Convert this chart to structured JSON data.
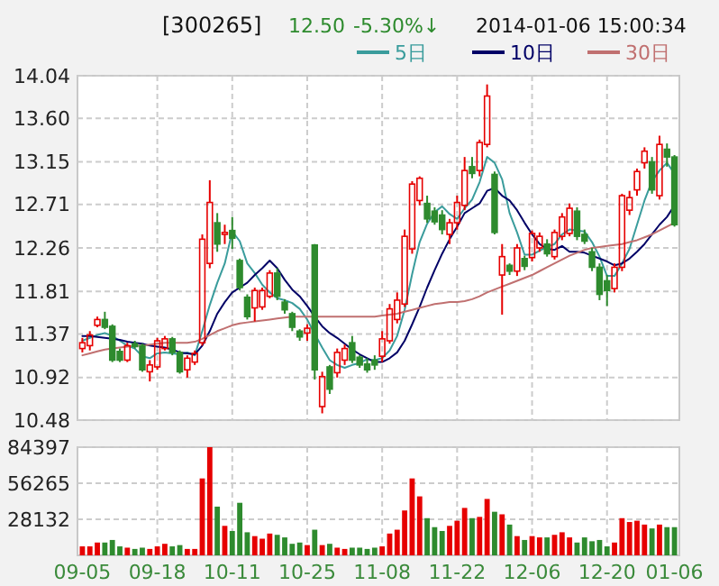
{
  "chart_data": [
    {
      "type": "candlestick",
      "title": "[300265]",
      "annotations": [
        "12.50",
        "-5.30%↓",
        "2014-01-06 15:00:34"
      ],
      "categories": [
        null,
        null,
        null,
        null,
        null,
        null,
        null,
        null,
        null,
        null,
        null,
        null,
        null,
        null,
        null,
        null,
        null,
        null,
        null,
        null,
        null,
        null,
        null,
        null,
        null,
        null,
        null,
        null,
        null,
        null,
        null,
        null,
        null,
        null,
        null,
        null,
        null,
        null,
        null,
        null,
        null,
        null,
        null,
        null,
        null,
        null,
        null,
        null,
        null,
        null,
        null,
        null,
        null,
        null,
        null,
        null,
        null,
        null,
        null,
        null,
        null,
        null,
        null,
        null,
        null,
        null,
        null,
        null,
        null,
        null,
        null,
        null,
        null,
        null,
        null,
        null,
        null,
        null,
        null,
        null
      ],
      "ohlc": [
        [
          11.22,
          11.33,
          11.18,
          11.28
        ],
        [
          11.25,
          11.4,
          11.2,
          11.36
        ],
        [
          11.46,
          11.55,
          11.44,
          11.52
        ],
        [
          11.52,
          11.6,
          11.42,
          11.44
        ],
        [
          11.45,
          11.47,
          11.08,
          11.1
        ],
        [
          11.19,
          11.22,
          11.08,
          11.1
        ],
        [
          11.1,
          11.28,
          11.08,
          11.25
        ],
        [
          11.27,
          11.3,
          11.22,
          11.24
        ],
        [
          11.25,
          11.27,
          10.98,
          11.0
        ],
        [
          10.98,
          11.1,
          10.88,
          11.05
        ],
        [
          11.03,
          11.33,
          11.0,
          11.3
        ],
        [
          11.22,
          11.35,
          11.2,
          11.32
        ],
        [
          11.32,
          11.34,
          11.15,
          11.18
        ],
        [
          11.18,
          11.2,
          10.96,
          10.98
        ],
        [
          11.0,
          11.15,
          10.92,
          11.12
        ],
        [
          11.08,
          11.2,
          11.05,
          11.17
        ],
        [
          11.28,
          12.4,
          11.25,
          12.35
        ],
        [
          12.1,
          12.96,
          12.05,
          12.73
        ],
        [
          12.52,
          12.62,
          12.22,
          12.3
        ],
        [
          12.4,
          12.5,
          12.3,
          12.42
        ],
        [
          12.44,
          12.58,
          12.25,
          12.36
        ],
        [
          12.13,
          12.15,
          11.82,
          11.85
        ],
        [
          11.75,
          11.78,
          11.52,
          11.55
        ],
        [
          11.64,
          11.85,
          11.5,
          11.82
        ],
        [
          11.65,
          11.85,
          11.62,
          11.82
        ],
        [
          11.76,
          12.03,
          11.74,
          12.0
        ],
        [
          12.0,
          12.05,
          11.72,
          11.76
        ],
        [
          11.7,
          11.73,
          11.58,
          11.62
        ],
        [
          11.58,
          11.6,
          11.4,
          11.44
        ],
        [
          11.4,
          11.42,
          11.3,
          11.34
        ],
        [
          11.38,
          11.47,
          11.3,
          11.43
        ],
        [
          12.29,
          12.3,
          10.9,
          11.0
        ],
        [
          10.62,
          10.98,
          10.55,
          10.93
        ],
        [
          11.03,
          11.05,
          10.75,
          10.8
        ],
        [
          10.97,
          11.22,
          10.92,
          11.18
        ],
        [
          11.1,
          11.26,
          11.05,
          11.22
        ],
        [
          11.28,
          11.35,
          11.07,
          11.1
        ],
        [
          11.13,
          11.15,
          11.02,
          11.05
        ],
        [
          11.06,
          11.12,
          10.97,
          11.0
        ],
        [
          11.1,
          11.15,
          11.0,
          11.05
        ],
        [
          11.14,
          11.4,
          11.08,
          11.32
        ],
        [
          11.3,
          11.68,
          11.27,
          11.63
        ],
        [
          11.52,
          11.8,
          11.48,
          11.72
        ],
        [
          11.68,
          12.45,
          11.65,
          12.38
        ],
        [
          12.25,
          12.95,
          12.2,
          12.92
        ],
        [
          12.75,
          13.0,
          12.7,
          12.98
        ],
        [
          12.72,
          12.8,
          12.52,
          12.56
        ],
        [
          12.64,
          12.68,
          12.5,
          12.53
        ],
        [
          12.6,
          12.65,
          12.4,
          12.45
        ],
        [
          12.4,
          12.56,
          12.3,
          12.52
        ],
        [
          12.52,
          12.8,
          12.45,
          12.73
        ],
        [
          12.7,
          13.2,
          12.65,
          13.06
        ],
        [
          13.1,
          13.2,
          12.98,
          13.03
        ],
        [
          13.06,
          13.38,
          13.0,
          13.35
        ],
        [
          13.33,
          13.95,
          13.3,
          13.83
        ],
        [
          13.02,
          13.05,
          12.4,
          12.42
        ],
        [
          11.98,
          12.3,
          11.57,
          12.17
        ],
        [
          12.08,
          12.1,
          11.98,
          12.02
        ],
        [
          12.02,
          12.3,
          11.97,
          12.26
        ],
        [
          12.15,
          12.18,
          12.03,
          12.07
        ],
        [
          12.16,
          12.44,
          12.12,
          12.41
        ],
        [
          12.26,
          12.42,
          12.22,
          12.38
        ],
        [
          12.3,
          12.35,
          12.17,
          12.2
        ],
        [
          12.17,
          12.45,
          12.14,
          12.42
        ],
        [
          12.38,
          12.62,
          12.34,
          12.58
        ],
        [
          12.41,
          12.72,
          12.38,
          12.67
        ],
        [
          12.64,
          12.68,
          12.34,
          12.38
        ],
        [
          12.4,
          12.45,
          12.3,
          12.33
        ],
        [
          12.22,
          12.26,
          12.02,
          12.06
        ],
        [
          12.06,
          12.1,
          11.72,
          11.78
        ],
        [
          11.92,
          11.98,
          11.66,
          11.82
        ],
        [
          11.84,
          12.1,
          11.8,
          12.06
        ],
        [
          12.06,
          12.82,
          12.02,
          12.8
        ],
        [
          12.65,
          12.85,
          12.6,
          12.78
        ],
        [
          12.86,
          13.08,
          12.8,
          13.05
        ],
        [
          13.14,
          13.3,
          13.08,
          13.26
        ],
        [
          13.15,
          13.2,
          12.82,
          12.86
        ],
        [
          12.8,
          13.42,
          12.76,
          13.33
        ],
        [
          13.28,
          13.34,
          13.1,
          13.2
        ],
        [
          13.2,
          13.22,
          12.48,
          12.5
        ]
      ],
      "colors": [
        "#e60000",
        "#e60000",
        "#e60000",
        "#2e8b2e",
        "#2e8b2e",
        "#2e8b2e",
        "#e60000",
        "#2e8b2e",
        "#2e8b2e",
        "#e60000",
        "#e60000",
        "#e60000",
        "#2e8b2e",
        "#2e8b2e",
        "#e60000",
        "#e60000",
        "#e60000",
        "#e60000",
        "#2e8b2e",
        "#e60000",
        "#2e8b2e",
        "#2e8b2e",
        "#2e8b2e",
        "#e60000",
        "#e60000",
        "#e60000",
        "#2e8b2e",
        "#2e8b2e",
        "#2e8b2e",
        "#2e8b2e",
        "#e60000",
        "#2e8b2e",
        "#e60000",
        "#2e8b2e",
        "#e60000",
        "#e60000",
        "#2e8b2e",
        "#2e8b2e",
        "#2e8b2e",
        "#2e8b2e",
        "#e60000",
        "#e60000",
        "#e60000",
        "#e60000",
        "#e60000",
        "#e60000",
        "#2e8b2e",
        "#2e8b2e",
        "#2e8b2e",
        "#e60000",
        "#e60000",
        "#e60000",
        "#2e8b2e",
        "#e60000",
        "#e60000",
        "#2e8b2e",
        "#e60000",
        "#2e8b2e",
        "#e60000",
        "#2e8b2e",
        "#e60000",
        "#e60000",
        "#2e8b2e",
        "#e60000",
        "#e60000",
        "#e60000",
        "#2e8b2e",
        "#2e8b2e",
        "#2e8b2e",
        "#2e8b2e",
        "#2e8b2e",
        "#e60000",
        "#e60000",
        "#e60000",
        "#e60000",
        "#e60000",
        "#2e8b2e",
        "#e60000",
        "#2e8b2e",
        "#2e8b2e"
      ],
      "series": [
        {
          "type": "line",
          "name": "5日",
          "color": "#3a9c9c",
          "values": [
            11.3,
            11.33,
            11.36,
            11.38,
            11.35,
            11.3,
            11.25,
            11.22,
            11.14,
            11.12,
            11.17,
            11.18,
            11.17,
            11.16,
            11.18,
            11.15,
            11.4,
            11.67,
            11.9,
            12.1,
            12.43,
            12.33,
            12.1,
            12.0,
            11.88,
            11.8,
            11.74,
            11.72,
            11.69,
            11.63,
            11.52,
            11.37,
            11.23,
            11.1,
            11.05,
            11.02,
            11.05,
            11.07,
            11.11,
            11.1,
            11.12,
            11.2,
            11.35,
            11.62,
            11.99,
            12.32,
            12.51,
            12.63,
            12.69,
            12.61,
            12.56,
            12.67,
            12.76,
            12.94,
            13.2,
            13.14,
            12.97,
            12.62,
            12.42,
            12.19,
            12.19,
            12.23,
            12.27,
            12.3,
            12.4,
            12.45,
            12.44,
            12.43,
            12.32,
            12.17,
            11.97,
            11.97,
            12.1,
            12.25,
            12.5,
            12.75,
            12.95,
            13.06,
            13.14,
            13.03
          ]
        },
        {
          "type": "line",
          "name": "10日",
          "color": "#000066",
          "values": [
            11.35,
            11.35,
            11.34,
            11.33,
            11.32,
            11.31,
            11.29,
            11.28,
            11.27,
            11.25,
            11.24,
            11.23,
            11.21,
            11.18,
            11.17,
            11.16,
            11.25,
            11.4,
            11.58,
            11.7,
            11.8,
            11.85,
            11.9,
            11.98,
            12.05,
            12.13,
            12.05,
            11.93,
            11.83,
            11.76,
            11.66,
            11.55,
            11.45,
            11.38,
            11.33,
            11.27,
            11.21,
            11.16,
            11.12,
            11.08,
            11.08,
            11.12,
            11.18,
            11.3,
            11.47,
            11.65,
            11.85,
            12.03,
            12.2,
            12.35,
            12.48,
            12.62,
            12.67,
            12.72,
            12.85,
            12.88,
            12.8,
            12.75,
            12.65,
            12.52,
            12.4,
            12.3,
            12.25,
            12.24,
            12.28,
            12.22,
            12.22,
            12.21,
            12.18,
            12.15,
            12.12,
            12.08,
            12.1,
            12.15,
            12.22,
            12.3,
            12.4,
            12.5,
            12.58,
            12.7
          ]
        },
        {
          "type": "line",
          "name": "30日",
          "color": "#c07070",
          "values": [
            11.15,
            11.17,
            11.19,
            11.21,
            11.22,
            11.23,
            11.24,
            11.25,
            11.25,
            11.26,
            11.27,
            11.28,
            11.28,
            11.28,
            11.28,
            11.29,
            11.32,
            11.36,
            11.4,
            11.43,
            11.46,
            11.48,
            11.49,
            11.5,
            11.51,
            11.52,
            11.53,
            11.54,
            11.55,
            11.55,
            11.55,
            11.55,
            11.55,
            11.55,
            11.55,
            11.55,
            11.55,
            11.55,
            11.55,
            11.55,
            11.56,
            11.57,
            11.58,
            11.6,
            11.62,
            11.64,
            11.66,
            11.68,
            11.69,
            11.7,
            11.7,
            11.71,
            11.73,
            11.76,
            11.8,
            11.83,
            11.86,
            11.89,
            11.92,
            11.95,
            11.98,
            12.02,
            12.06,
            12.1,
            12.14,
            12.18,
            12.21,
            12.24,
            12.26,
            12.27,
            12.28,
            12.29,
            12.3,
            12.32,
            12.34,
            12.37,
            12.4,
            12.44,
            12.48,
            12.52
          ]
        }
      ],
      "ylim": [
        10.48,
        14.04
      ],
      "yticks": [
        10.48,
        10.92,
        11.37,
        11.81,
        12.26,
        12.71,
        13.15,
        {
          "value": 13.6,
          "label": "13.60"
        },
        14.04
      ],
      "grid": true,
      "legend": "top right",
      "tick_labels": "y",
      "marker": "none",
      "line_style": "solid"
    },
    {
      "type": "bar",
      "categories": [
        "09-05",
        null,
        null,
        null,
        null,
        null,
        null,
        null,
        null,
        null,
        "09-18",
        null,
        null,
        null,
        null,
        null,
        null,
        null,
        null,
        null,
        "10-11",
        null,
        null,
        null,
        null,
        null,
        null,
        null,
        null,
        null,
        "10-25",
        null,
        null,
        null,
        null,
        null,
        null,
        null,
        null,
        null,
        "11-08",
        null,
        null,
        null,
        null,
        null,
        null,
        null,
        null,
        null,
        "11-22",
        null,
        null,
        null,
        null,
        null,
        null,
        null,
        null,
        null,
        "12-06",
        null,
        null,
        null,
        null,
        null,
        null,
        null,
        null,
        null,
        "12-20",
        null,
        null,
        null,
        null,
        null,
        null,
        null,
        null,
        "01-06"
      ],
      "values": [
        7000,
        7000,
        10000,
        10000,
        12000,
        7000,
        6000,
        5000,
        6000,
        5000,
        7000,
        9000,
        7000,
        8000,
        5000,
        5000,
        60000,
        84397,
        38000,
        23000,
        19000,
        41000,
        18000,
        15000,
        13000,
        17000,
        16000,
        14000,
        9000,
        10000,
        8000,
        20000,
        8000,
        9000,
        6000,
        5000,
        6000,
        6000,
        5000,
        6000,
        7000,
        17000,
        20000,
        35000,
        60000,
        46000,
        29000,
        22000,
        19000,
        23000,
        27000,
        37000,
        29000,
        30000,
        44000,
        34000,
        32000,
        24000,
        15000,
        12000,
        15000,
        14000,
        14000,
        16000,
        18000,
        14000,
        10000,
        14000,
        11000,
        12000,
        7000,
        10000,
        29000,
        26000,
        27000,
        24000,
        21000,
        24000,
        22000,
        22000
      ],
      "colors": [
        "#e60000",
        "#e60000",
        "#e60000",
        "#2e8b2e",
        "#2e8b2e",
        "#2e8b2e",
        "#e60000",
        "#2e8b2e",
        "#2e8b2e",
        "#e60000",
        "#e60000",
        "#e60000",
        "#2e8b2e",
        "#2e8b2e",
        "#e60000",
        "#e60000",
        "#e60000",
        "#e60000",
        "#2e8b2e",
        "#e60000",
        "#2e8b2e",
        "#2e8b2e",
        "#2e8b2e",
        "#e60000",
        "#e60000",
        "#e60000",
        "#2e8b2e",
        "#2e8b2e",
        "#2e8b2e",
        "#2e8b2e",
        "#e60000",
        "#2e8b2e",
        "#e60000",
        "#2e8b2e",
        "#e60000",
        "#e60000",
        "#2e8b2e",
        "#2e8b2e",
        "#2e8b2e",
        "#2e8b2e",
        "#e60000",
        "#e60000",
        "#e60000",
        "#e60000",
        "#e60000",
        "#e60000",
        "#2e8b2e",
        "#2e8b2e",
        "#2e8b2e",
        "#e60000",
        "#e60000",
        "#e60000",
        "#2e8b2e",
        "#e60000",
        "#e60000",
        "#2e8b2e",
        "#e60000",
        "#2e8b2e",
        "#e60000",
        "#2e8b2e",
        "#e60000",
        "#e60000",
        "#2e8b2e",
        "#e60000",
        "#e60000",
        "#e60000",
        "#2e8b2e",
        "#2e8b2e",
        "#2e8b2e",
        "#2e8b2e",
        "#2e8b2e",
        "#e60000",
        "#e60000",
        "#e60000",
        "#e60000",
        "#e60000",
        "#2e8b2e",
        "#e60000",
        "#2e8b2e",
        "#2e8b2e"
      ],
      "ylim": [
        0,
        84397
      ],
      "yticks": [
        28132,
        56265,
        84397
      ],
      "grid": true
    }
  ]
}
